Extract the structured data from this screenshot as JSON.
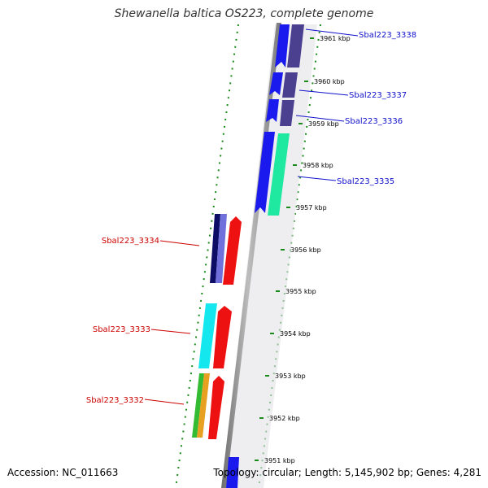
{
  "title": "Shewanella baltica OS223, complete genome",
  "footer": {
    "accession": "Accession: NC_011663",
    "stats": "Topology: circular; Length: 5,145,902 bp; Genes: 4,281"
  },
  "colors": {
    "backbone": "#9b9b9b",
    "scale_dots": "#1a8a1a",
    "right_labels": "#1010cc",
    "left_labels": "#cc0000"
  },
  "positions": [
    "3961 kbp",
    "3960 kbp",
    "3959 kbp",
    "3958 kbp",
    "3957 kbp",
    "3956 kbp",
    "3955 kbp",
    "3954 kbp",
    "3953 kbp",
    "3952 kbp",
    "3951 kbp"
  ],
  "genes": [
    {
      "id": "Sbal223_3338",
      "label": "Sbal223_3338",
      "side": "right"
    },
    {
      "id": "Sbal223_3337",
      "label": "Sbal223_3337",
      "side": "right"
    },
    {
      "id": "Sbal223_3336",
      "label": "Sbal223_3336",
      "side": "right"
    },
    {
      "id": "Sbal223_3335",
      "label": "Sbal223_3335",
      "side": "right"
    },
    {
      "id": "Sbal223_3334",
      "label": "Sbal223_3334",
      "side": "left"
    },
    {
      "id": "Sbal223_3333",
      "label": "Sbal223_3333",
      "side": "left"
    },
    {
      "id": "Sbal223_3332",
      "label": "Sbal223_3332",
      "side": "left"
    }
  ]
}
